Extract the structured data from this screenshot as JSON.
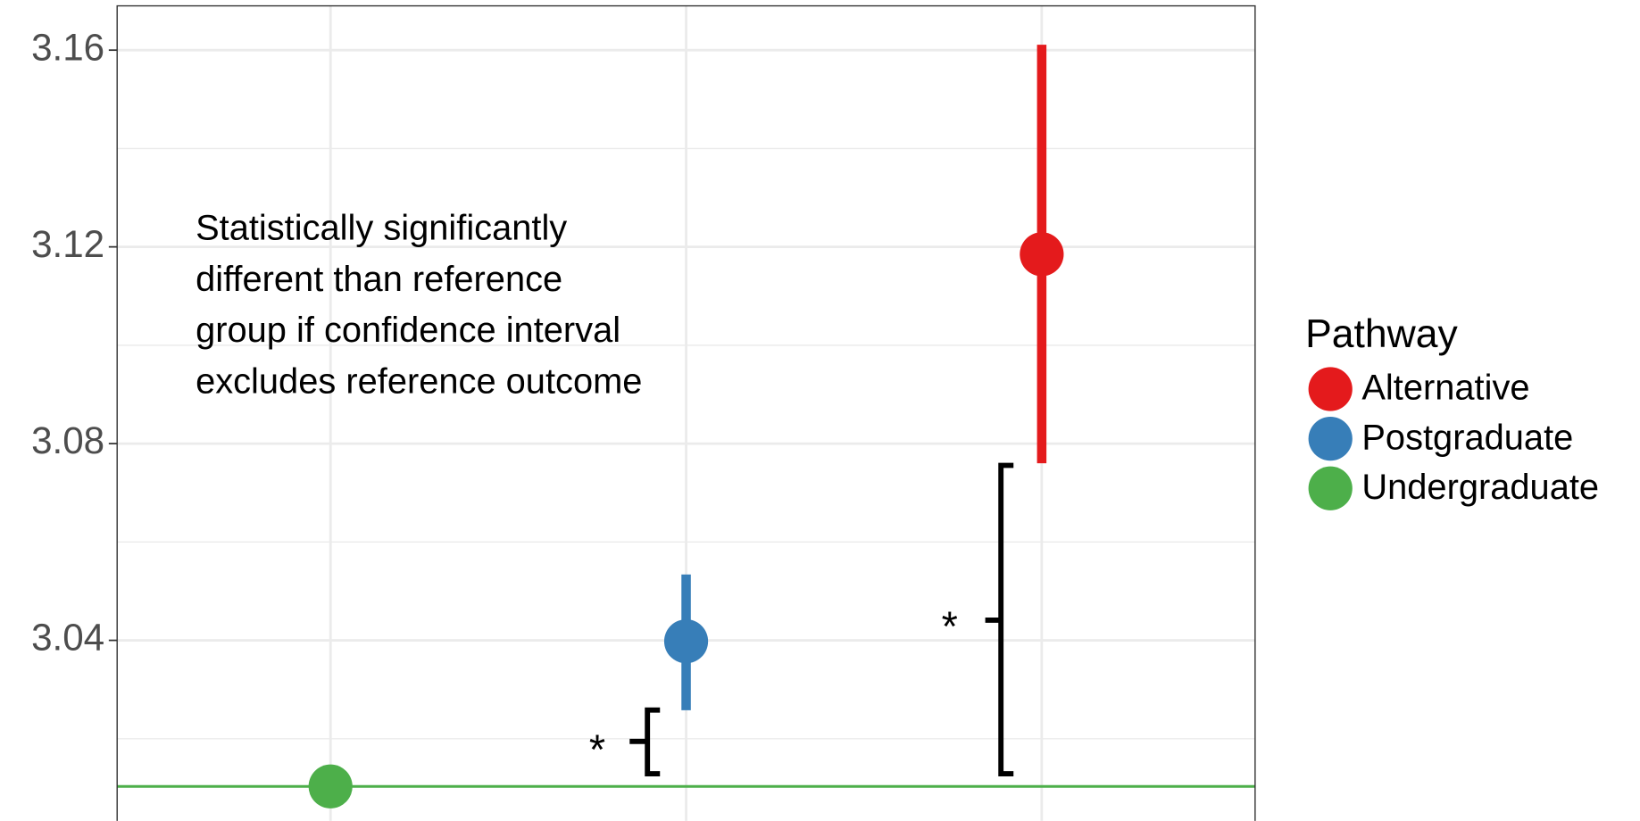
{
  "chart_data": {
    "type": "pointrange",
    "categories": [
      null,
      null,
      null
    ],
    "series": [
      {
        "name": "Alternative",
        "color": "#e41a1c",
        "values": [
          null,
          null,
          3.1185
        ],
        "lower": [
          null,
          null,
          3.076
        ],
        "upper": [
          null,
          null,
          3.1611
        ]
      },
      {
        "name": "Postgraduate",
        "color": "#377eb8",
        "values": [
          null,
          3.0398,
          null
        ],
        "lower": [
          null,
          3.0258,
          null
        ],
        "upper": [
          null,
          3.0534,
          null
        ]
      },
      {
        "name": "Undergraduate",
        "color": "#4daf4a",
        "values": [
          3.0103,
          null,
          null
        ],
        "lower": [
          null,
          null,
          null
        ],
        "upper": [
          null,
          null,
          null
        ]
      }
    ],
    "ylim": [
      3.0033,
      3.1691
    ],
    "yticks": [
      3.04,
      3.08,
      3.12,
      3.16
    ],
    "minor_yticks": [
      3.02,
      3.06,
      3.1,
      3.14
    ],
    "grid": true,
    "reference_line": 3.0103,
    "reference_color": "#4daf4a",
    "legend_title": "Pathway",
    "legend_position": "right",
    "annotation": [
      "Statistically significantly",
      "different than reference",
      "group if confidence interval",
      "excludes reference outcome"
    ],
    "significance_marks": [
      "*",
      "*"
    ]
  }
}
